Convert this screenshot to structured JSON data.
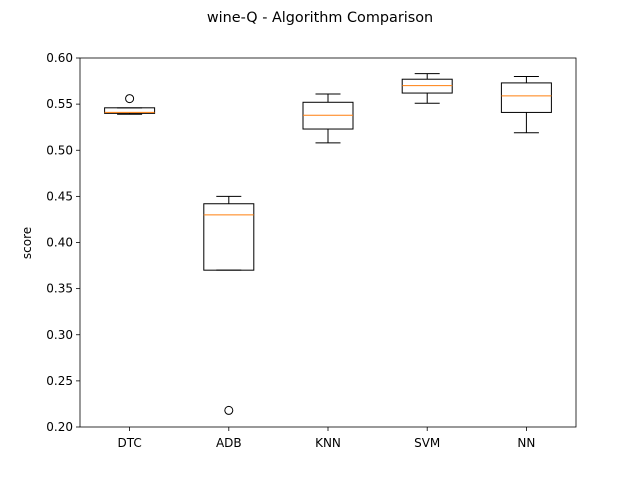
{
  "chart_data": {
    "type": "boxplot",
    "title": "wine-Q - Algorithm Comparison",
    "xlabel": "",
    "ylabel": "score",
    "ylim": [
      0.2,
      0.6
    ],
    "yticks": [
      "0.20",
      "0.25",
      "0.30",
      "0.35",
      "0.40",
      "0.45",
      "0.50",
      "0.55",
      "0.60"
    ],
    "grid": false,
    "categories": [
      "DTC",
      "ADB",
      "KNN",
      "SVM",
      "NN"
    ],
    "boxes": [
      {
        "label": "DTC",
        "whisker_low": 0.539,
        "q1": 0.54,
        "median": 0.541,
        "q3": 0.546,
        "whisker_high": 0.546,
        "outliers": [
          0.556
        ]
      },
      {
        "label": "ADB",
        "whisker_low": 0.37,
        "q1": 0.37,
        "median": 0.43,
        "q3": 0.442,
        "whisker_high": 0.45,
        "outliers": [
          0.218
        ]
      },
      {
        "label": "KNN",
        "whisker_low": 0.508,
        "q1": 0.523,
        "median": 0.538,
        "q3": 0.552,
        "whisker_high": 0.561,
        "outliers": []
      },
      {
        "label": "SVM",
        "whisker_low": 0.551,
        "q1": 0.562,
        "median": 0.57,
        "q3": 0.577,
        "whisker_high": 0.583,
        "outliers": []
      },
      {
        "label": "NN",
        "whisker_low": 0.519,
        "q1": 0.541,
        "median": 0.559,
        "q3": 0.573,
        "whisker_high": 0.58,
        "outliers": []
      }
    ],
    "colors": {
      "box": "#000000",
      "median": "#ff7f0e",
      "outlier": "#000000"
    }
  }
}
